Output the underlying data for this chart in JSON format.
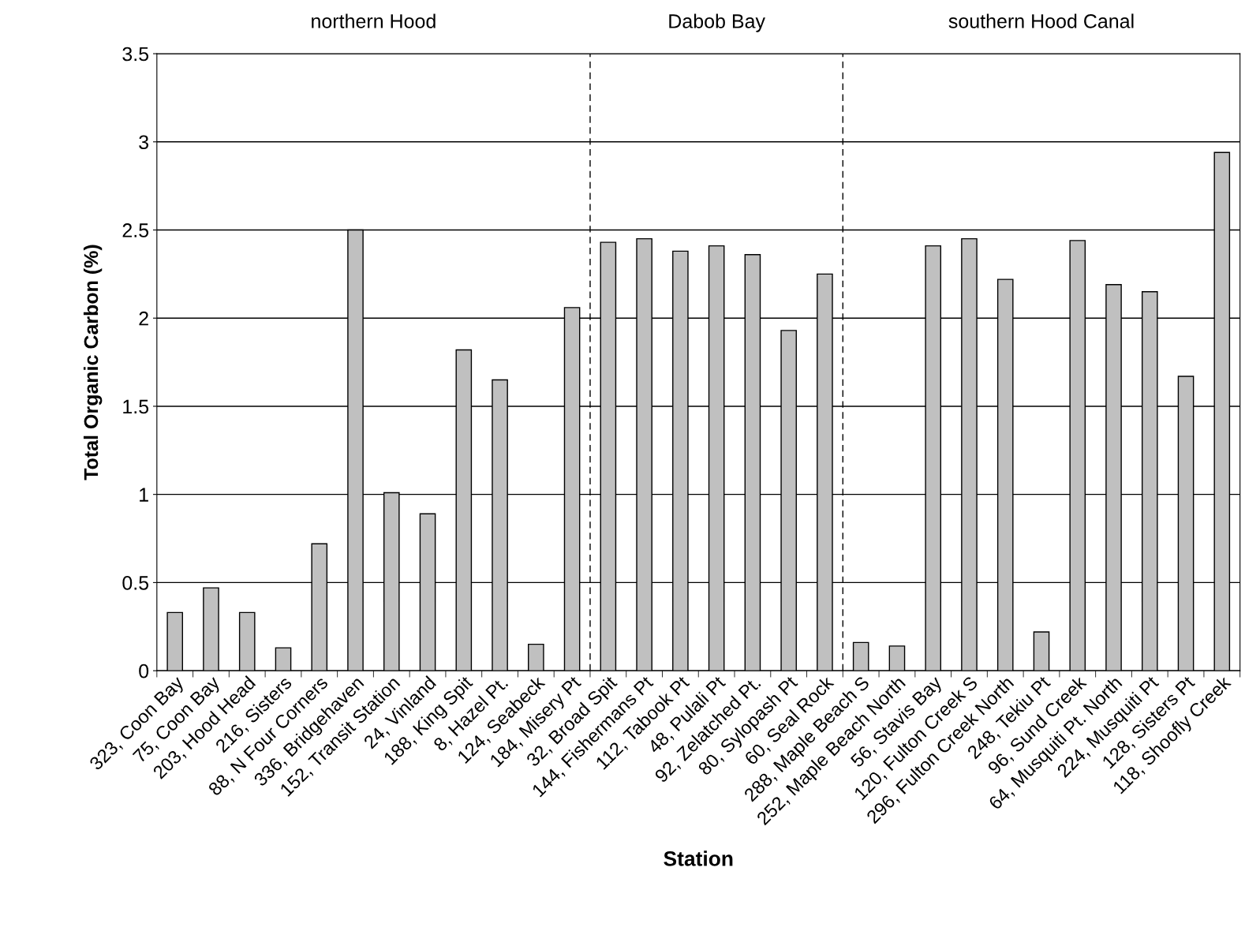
{
  "chart_data": {
    "type": "bar",
    "categories": [
      "323, Coon Bay",
      "75, Coon Bay",
      "203, Hood Head",
      "216, Sisters",
      "88, N Four Corners",
      "336, Bridgehaven",
      "152, Transit Station",
      "24, Vinland",
      "188, King Spit",
      "8, Hazel Pt.",
      "124, Seabeck",
      "184, Misery Pt",
      "32, Broad Spit",
      "144, Fishermans Pt",
      "112, Tabook Pt",
      "48, Pulali Pt",
      "92, Zelatched Pt.",
      "80, Sylopash Pt",
      "60, Seal Rock",
      "288, Maple Beach S",
      "252, Maple Beach North",
      "56, Stavis Bay",
      "120, Fulton Creek S",
      "296, Fulton Creek North",
      "248, Tekiu Pt",
      "96, Sund Creek",
      "64, Musquiti Pt. North",
      "224, Musquiti Pt",
      "128, Sisters Pt",
      "118, Shoofly Creek"
    ],
    "values": [
      0.33,
      0.47,
      0.33,
      0.13,
      0.72,
      2.5,
      1.01,
      0.89,
      1.82,
      1.65,
      0.15,
      2.06,
      2.43,
      2.45,
      2.38,
      2.41,
      2.36,
      1.93,
      2.25,
      0.16,
      0.14,
      2.41,
      2.45,
      2.22,
      0.22,
      2.44,
      2.19,
      2.15,
      1.67,
      2.94
    ],
    "color": "#c0c0c0",
    "xlabel": "Station",
    "ylabel": "Total Organic Carbon (%)",
    "ylim": [
      0,
      3.5
    ],
    "yticks": [
      0,
      0.5,
      1,
      1.5,
      2,
      2.5,
      3,
      3.5
    ],
    "grid": "y",
    "annotations": [
      "northern Hood",
      "Dabob Bay",
      "southern Hood Canal"
    ]
  }
}
